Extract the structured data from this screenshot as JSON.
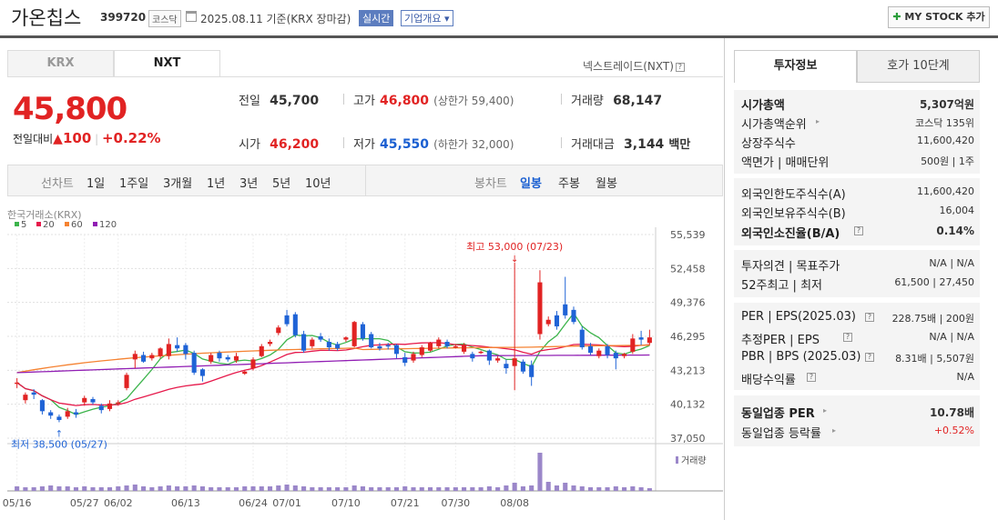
{
  "header": {
    "title": "가온칩스",
    "code": "399720",
    "market": "코스닥",
    "date": "2025.08.11  기준(KRX 장마감)",
    "realtime": "실시간",
    "overview": "기업개요 ▾",
    "mystock": "MY STOCK 추가"
  },
  "tabs": {
    "krx": "KRX",
    "nxt": "NXT",
    "nxt_label": "넥스트레이드(NXT)"
  },
  "quote": {
    "price": "45,800",
    "change_label": "전일대비",
    "change": "100",
    "change_pct": "+0.22%",
    "prev_label": "전일",
    "prev": "45,700",
    "high_label": "고가",
    "high": "46,800",
    "upper_limit": "(상한가 59,400)",
    "volume_label": "거래량",
    "volume": "68,147",
    "open_label": "시가",
    "open": "46,200",
    "low_label": "저가",
    "low": "45,550",
    "lower_limit": "(하한가 32,000)",
    "amount_label": "거래대금",
    "amount": "3,144",
    "amount_unit": "백만"
  },
  "period": {
    "label": "선차트",
    "items": [
      "1일",
      "1주일",
      "3개월",
      "1년",
      "3년",
      "5년",
      "10년"
    ],
    "candle_label": "봉차트",
    "candle_items": [
      "일봉",
      "주봉",
      "월봉"
    ],
    "selected_candle": "일봉"
  },
  "right_panel": {
    "tab_invest": "투자정보",
    "tab_hoga": "호가 10단계",
    "rows1": [
      {
        "k": "시가총액",
        "v": "5,307억원"
      },
      {
        "k": "시가총액순위",
        "v": "코스닥 135위"
      },
      {
        "k": "상장주식수",
        "v": "11,600,420"
      },
      {
        "k": "액면가 | 매매단위",
        "v": "500원 | 1주"
      }
    ],
    "rows2": [
      {
        "k": "외국인한도주식수(A)",
        "v": "11,600,420"
      },
      {
        "k": "외국인보유주식수(B)",
        "v": "16,004"
      },
      {
        "k": "외국인소진율(B/A)",
        "v": "0.14%"
      }
    ],
    "rows3": [
      {
        "k": "투자의견 | 목표주가",
        "v": "N/A | N/A"
      },
      {
        "k": "52주최고 | 최저",
        "v": "61,500 | 27,450"
      }
    ],
    "rows4": [
      {
        "k": "PER | EPS(2025.03)",
        "v": "228.75배 | 200원"
      },
      {
        "k": "추정PER | EPS",
        "v": "N/A | N/A"
      },
      {
        "k": "PBR | BPS (2025.03)",
        "v": "8.31배 | 5,507원"
      },
      {
        "k": "배당수익률",
        "v": "N/A"
      }
    ],
    "rows5": [
      {
        "k": "동일업종 PER",
        "v": "10.78배"
      },
      {
        "k": "동일업종 등락률",
        "v": "+0.52%"
      }
    ]
  },
  "chart_data": {
    "type": "candlestick",
    "source_label": "한국거래소(KRX)",
    "legend": [
      {
        "name": "5",
        "color": "#3cb44b"
      },
      {
        "name": "20",
        "color": "#e6194b"
      },
      {
        "name": "60",
        "color": "#f58231"
      },
      {
        "name": "120",
        "color": "#911eb4"
      }
    ],
    "y_ticks": [
      55539,
      52458,
      49376,
      46295,
      43213,
      40132,
      37050
    ],
    "ylim": [
      37050,
      55539
    ],
    "x_labels": [
      "05/16",
      "05/27",
      "06/02",
      "06/13",
      "06/24",
      "07/01",
      "07/10",
      "07/21",
      "07/30",
      "08/08"
    ],
    "high_annotation": "최고 53,000 (07/23)",
    "low_annotation": "최저 38,500 (05/27)",
    "volume_label": "거래량",
    "candles": [
      [
        42000,
        42100,
        41600,
        42500
      ],
      [
        40500,
        41000,
        40200,
        41200
      ],
      [
        41200,
        41000,
        40600,
        41500
      ],
      [
        40500,
        39500,
        39200,
        40600
      ],
      [
        39400,
        39100,
        38800,
        39600
      ],
      [
        39000,
        38700,
        38500,
        39200
      ],
      [
        39000,
        39500,
        38800,
        39800
      ],
      [
        39400,
        39200,
        38900,
        39700
      ],
      [
        40300,
        40700,
        40000,
        40900
      ],
      [
        40600,
        40300,
        40100,
        40800
      ],
      [
        40000,
        39600,
        39300,
        40200
      ],
      [
        39700,
        40200,
        39500,
        40500
      ],
      [
        40200,
        40300,
        40000,
        40500
      ],
      [
        41600,
        42800,
        41400,
        43000
      ],
      [
        44200,
        44700,
        43400,
        45000
      ],
      [
        44600,
        44000,
        43900,
        44900
      ],
      [
        44300,
        44600,
        44100,
        44800
      ],
      [
        44500,
        45200,
        44300,
        45300
      ],
      [
        44500,
        45600,
        44200,
        46100
      ],
      [
        45500,
        45200,
        44900,
        46200
      ],
      [
        45500,
        44700,
        44200,
        45700
      ],
      [
        44800,
        43000,
        42800,
        45000
      ],
      [
        43300,
        42700,
        42200,
        43400
      ],
      [
        44000,
        44600,
        43800,
        44800
      ],
      [
        44800,
        44300,
        44000,
        45000
      ],
      [
        44400,
        44200,
        44000,
        44600
      ],
      [
        44100,
        44500,
        43900,
        44800
      ],
      [
        42900,
        43100,
        42800,
        43200
      ],
      [
        43400,
        44200,
        43200,
        44400
      ],
      [
        44500,
        45400,
        44400,
        45600
      ],
      [
        45600,
        45800,
        45400,
        46000
      ],
      [
        46600,
        47100,
        46400,
        47300
      ],
      [
        48200,
        47400,
        47200,
        48700
      ],
      [
        48300,
        46400,
        46200,
        48500
      ],
      [
        46500,
        45000,
        44800,
        46800
      ],
      [
        45400,
        46000,
        45200,
        46200
      ],
      [
        46300,
        46000,
        45800,
        46600
      ],
      [
        45800,
        45300,
        45000,
        46100
      ],
      [
        45600,
        45200,
        45000,
        45800
      ],
      [
        46000,
        46200,
        45800,
        46300
      ],
      [
        45400,
        47600,
        45300,
        47700
      ],
      [
        47400,
        46100,
        45900,
        47600
      ],
      [
        46500,
        45300,
        45200,
        46700
      ],
      [
        45400,
        45200,
        45000,
        45700
      ],
      [
        45500,
        45400,
        45100,
        45700
      ],
      [
        45500,
        44700,
        44300,
        45600
      ],
      [
        44400,
        43900,
        43600,
        44800
      ],
      [
        44100,
        44700,
        43900,
        44900
      ],
      [
        44600,
        45300,
        44400,
        45500
      ],
      [
        45000,
        45700,
        44900,
        45800
      ],
      [
        45400,
        46000,
        45200,
        46200
      ],
      [
        45800,
        45400,
        45200,
        46000
      ],
      [
        45400,
        45400,
        45200,
        45600
      ],
      [
        44900,
        45500,
        44700,
        45700
      ],
      [
        44700,
        44300,
        44000,
        44900
      ],
      [
        44900,
        44900,
        44700,
        45000
      ],
      [
        45000,
        44100,
        43700,
        45100
      ],
      [
        44100,
        44300,
        43900,
        44500
      ],
      [
        43800,
        43400,
        42900,
        44200
      ],
      [
        43600,
        44300,
        41400,
        53000
      ],
      [
        44000,
        43100,
        42900,
        44200
      ],
      [
        43700,
        42600,
        41800,
        44100
      ],
      [
        46500,
        51200,
        46000,
        52300
      ],
      [
        47400,
        47800,
        47200,
        48100
      ],
      [
        48200,
        47200,
        46900,
        48600
      ],
      [
        49200,
        48200,
        47900,
        51700
      ],
      [
        48700,
        47600,
        47400,
        49000
      ],
      [
        46900,
        45300,
        45100,
        47200
      ],
      [
        45400,
        44800,
        44600,
        45700
      ],
      [
        44500,
        45000,
        44300,
        45200
      ],
      [
        45400,
        44600,
        44300,
        45600
      ],
      [
        44800,
        44300,
        43300,
        45000
      ],
      [
        44500,
        44700,
        44300,
        44800
      ],
      [
        44900,
        46100,
        44700,
        46500
      ],
      [
        46200,
        46000,
        45500,
        46800
      ],
      [
        45700,
        46200,
        45500,
        46900
      ]
    ],
    "volumes": [
      5,
      4,
      4,
      5,
      6,
      5,
      5,
      4,
      5,
      4,
      4,
      4,
      5,
      6,
      7,
      5,
      4,
      5,
      6,
      5,
      5,
      6,
      5,
      4,
      4,
      4,
      4,
      5,
      5,
      5,
      5,
      6,
      7,
      6,
      5,
      4,
      4,
      4,
      4,
      4,
      6,
      5,
      4,
      4,
      4,
      4,
      5,
      4,
      4,
      4,
      4,
      4,
      4,
      4,
      4,
      4,
      5,
      4,
      6,
      9,
      5,
      6,
      42,
      10,
      6,
      9,
      6,
      5,
      4,
      4,
      4,
      5,
      4,
      5,
      4,
      3
    ]
  }
}
